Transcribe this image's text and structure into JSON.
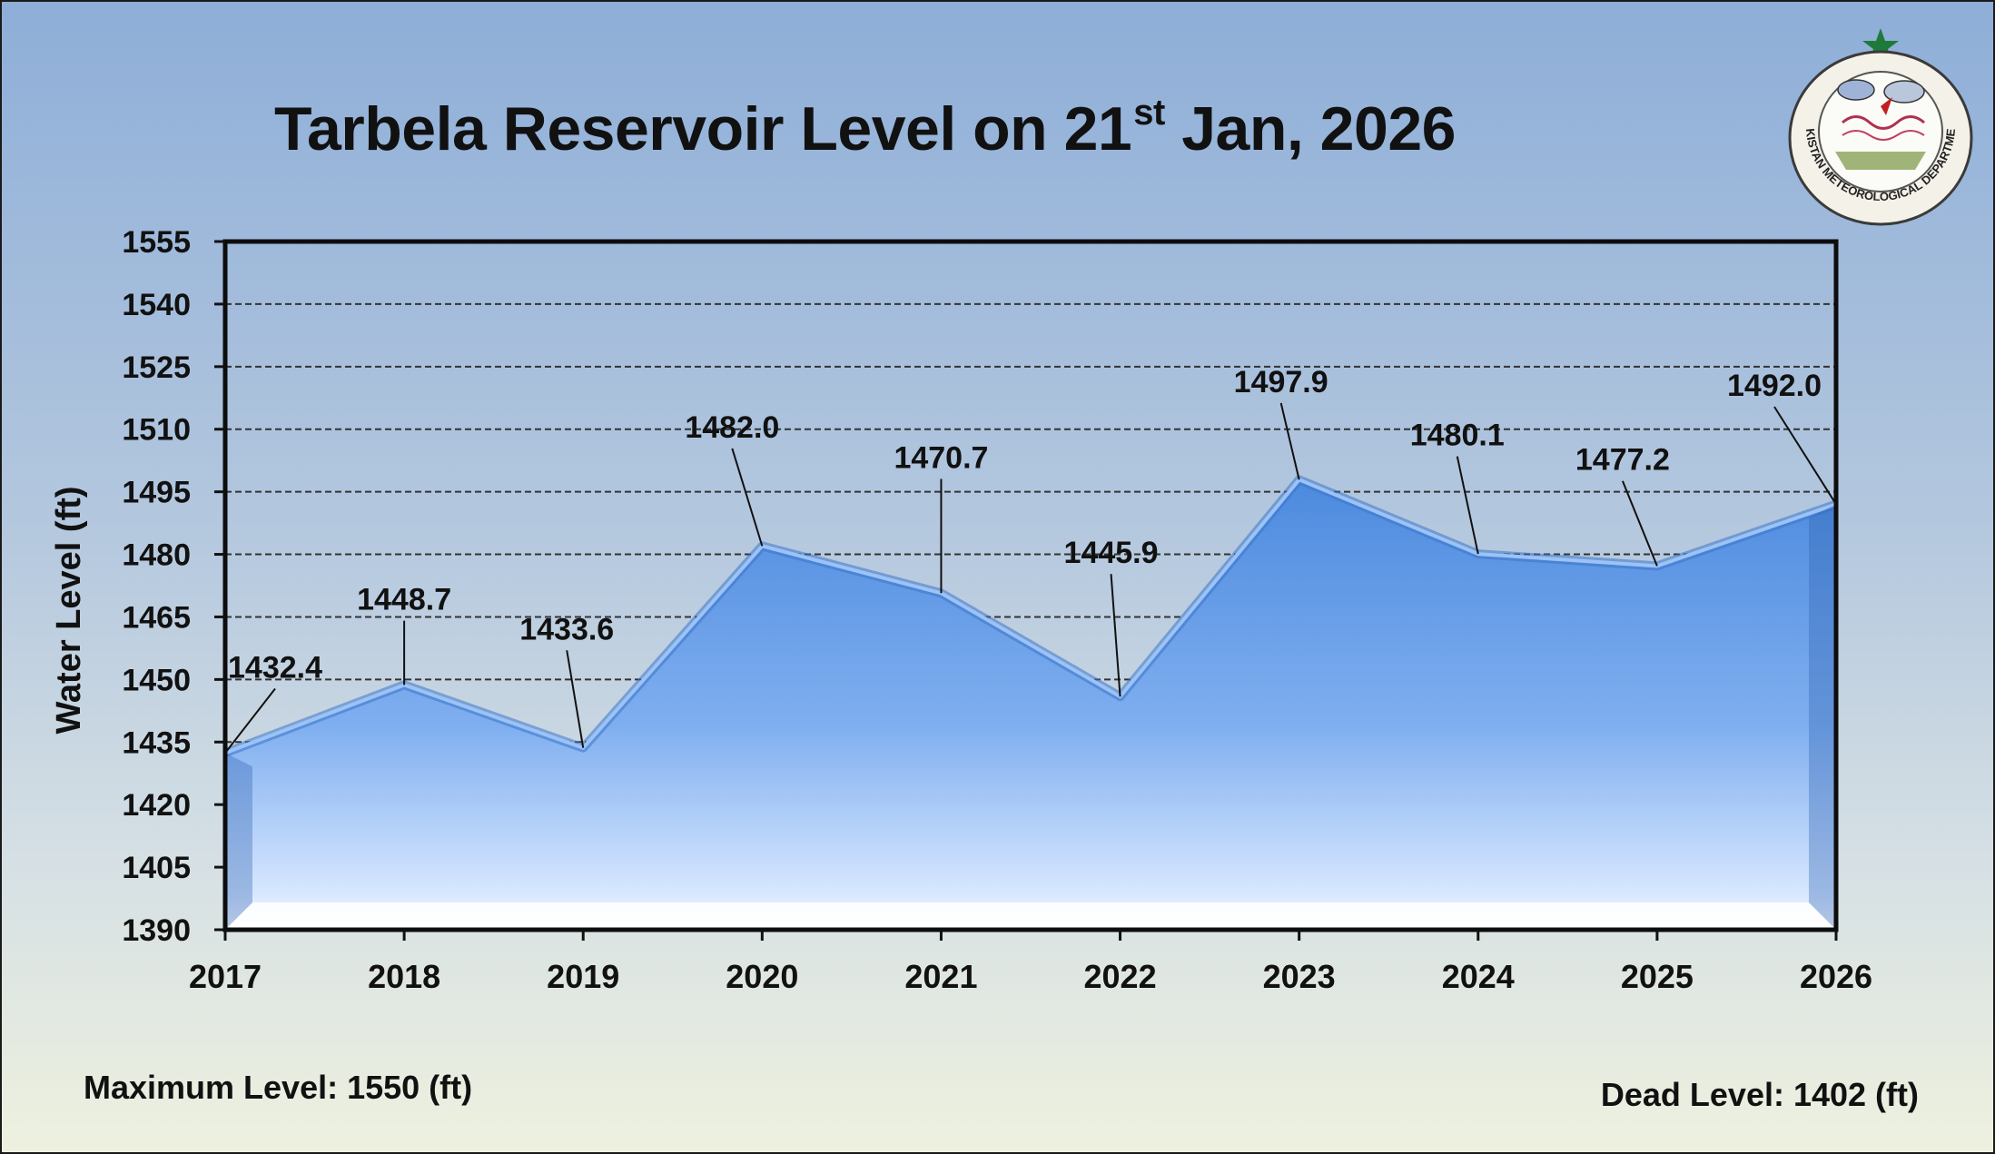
{
  "chart_data": {
    "type": "area",
    "title_main": "Tarbela Reservoir Level on 21",
    "title_sup": "st",
    "title_rest": " Jan, 2026",
    "ylabel": "Water Level (ft)",
    "xlabel": "",
    "ylim": [
      1390,
      1555
    ],
    "yticks": [
      "1555",
      "1540",
      "1525",
      "1510",
      "1495",
      "1480",
      "1465",
      "1450",
      "1435",
      "1420",
      "1405",
      "1390"
    ],
    "categories": [
      "2017",
      "2018",
      "2019",
      "2020",
      "2021",
      "2022",
      "2023",
      "2024",
      "2025",
      "2026"
    ],
    "values": [
      1432.4,
      1448.7,
      1433.6,
      1482.0,
      1470.7,
      1445.9,
      1497.9,
      1480.1,
      1477.2,
      1492.0
    ],
    "labels": [
      "1432.4",
      "1448.7",
      "1433.6",
      "1482.0",
      "1470.7",
      "1445.9",
      "1497.9",
      "1480.1",
      "1477.2",
      "1492.0"
    ],
    "grid": true,
    "colors": {
      "fill_top": "#4f8fe0",
      "fill_bottom": "#e4efff",
      "edge": "#6fa6ee",
      "grid": "#333333"
    }
  },
  "footer": {
    "max_level": "Maximum Level: 1550 (ft)",
    "dead_level": "Dead Level: 1402 (ft)"
  },
  "logo": {
    "name": "PAKISTAN METEOROLOGICAL DEPARTMENT",
    "star_color": "#1e7a3a"
  }
}
